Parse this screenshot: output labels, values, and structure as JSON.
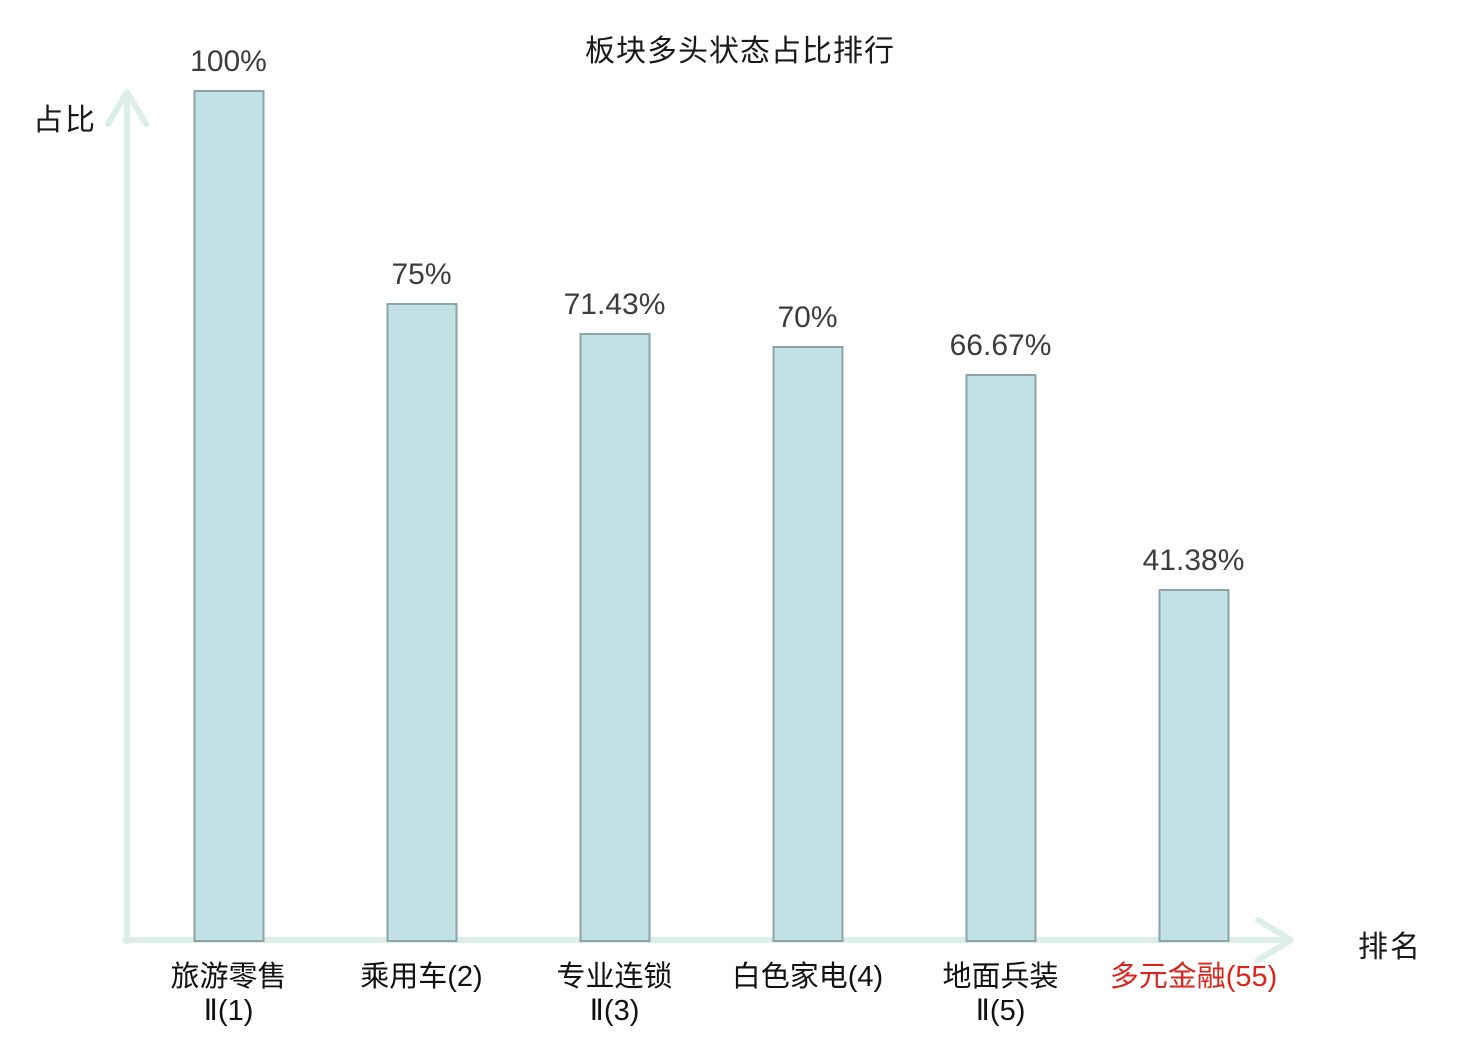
{
  "title": "板块多头状态占比排行",
  "chart_data": {
    "type": "bar",
    "title": "板块多头状态占比排行",
    "xlabel": "排名",
    "ylabel": "占比",
    "categories": [
      "旅游零售Ⅱ(1)",
      "乘用车(2)",
      "专业连锁Ⅱ(3)",
      "白色家电(4)",
      "地面兵装Ⅱ(5)",
      "多元金融(55)"
    ],
    "category_lines": [
      [
        "旅游零售",
        "Ⅱ(1)"
      ],
      [
        "乘用车(2)"
      ],
      [
        "专业连锁",
        "Ⅱ(3)"
      ],
      [
        "白色家电(4)"
      ],
      [
        "地面兵装",
        "Ⅱ(5)"
      ],
      [
        "多元金融(55)"
      ]
    ],
    "values": [
      100,
      75,
      71.43,
      70,
      66.67,
      41.38
    ],
    "value_labels": [
      "100%",
      "75%",
      "71.43%",
      "70%",
      "66.67%",
      "41.38%"
    ],
    "highlighted_category_index": 5,
    "ylim": [
      0,
      100
    ],
    "grid": false,
    "legend": null,
    "colors": {
      "bar_fill": "#c2e1e4",
      "bar_border": "#8aa4a8",
      "axis": "#dceeea",
      "value_label": "#3d3d3d",
      "category_label": "#111111",
      "highlight": "#d9261d"
    }
  }
}
